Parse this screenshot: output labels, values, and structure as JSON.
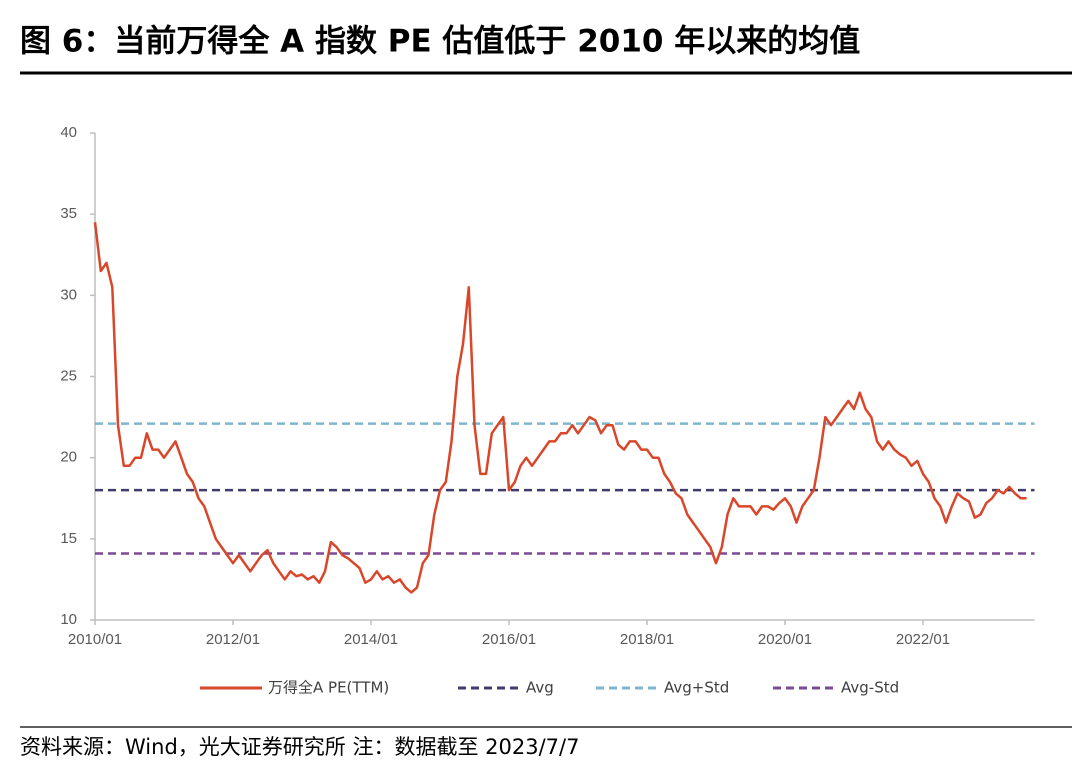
{
  "chart_data": {
    "type": "line",
    "title": "图 6：当前万得全 A 指数 PE 估值低于 2010 年以来的均值",
    "source": "资料来源：Wind，光大证券研究所 注：数据截至 2023/7/7",
    "x": [
      "2010/01",
      "2010/02",
      "2010/03",
      "2010/04",
      "2010/05",
      "2010/06",
      "2010/07",
      "2010/08",
      "2010/09",
      "2010/10",
      "2010/11",
      "2010/12",
      "2011/01",
      "2011/02",
      "2011/03",
      "2011/04",
      "2011/05",
      "2011/06",
      "2011/07",
      "2011/08",
      "2011/09",
      "2011/10",
      "2011/11",
      "2011/12",
      "2012/01",
      "2012/02",
      "2012/03",
      "2012/04",
      "2012/05",
      "2012/06",
      "2012/07",
      "2012/08",
      "2012/09",
      "2012/10",
      "2012/11",
      "2012/12",
      "2013/01",
      "2013/02",
      "2013/03",
      "2013/04",
      "2013/05",
      "2013/06",
      "2013/07",
      "2013/08",
      "2013/09",
      "2013/10",
      "2013/11",
      "2013/12",
      "2014/01",
      "2014/02",
      "2014/03",
      "2014/04",
      "2014/05",
      "2014/06",
      "2014/07",
      "2014/08",
      "2014/09",
      "2014/10",
      "2014/11",
      "2014/12",
      "2015/01",
      "2015/02",
      "2015/03",
      "2015/04",
      "2015/05",
      "2015/06",
      "2015/07",
      "2015/08",
      "2015/09",
      "2015/10",
      "2015/11",
      "2015/12",
      "2016/01",
      "2016/02",
      "2016/03",
      "2016/04",
      "2016/05",
      "2016/06",
      "2016/07",
      "2016/08",
      "2016/09",
      "2016/10",
      "2016/11",
      "2016/12",
      "2017/01",
      "2017/02",
      "2017/03",
      "2017/04",
      "2017/05",
      "2017/06",
      "2017/07",
      "2017/08",
      "2017/09",
      "2017/10",
      "2017/11",
      "2017/12",
      "2018/01",
      "2018/02",
      "2018/03",
      "2018/04",
      "2018/05",
      "2018/06",
      "2018/07",
      "2018/08",
      "2018/09",
      "2018/10",
      "2018/11",
      "2018/12",
      "2019/01",
      "2019/02",
      "2019/03",
      "2019/04",
      "2019/05",
      "2019/06",
      "2019/07",
      "2019/08",
      "2019/09",
      "2019/10",
      "2019/11",
      "2019/12",
      "2020/01",
      "2020/02",
      "2020/03",
      "2020/04",
      "2020/05",
      "2020/06",
      "2020/07",
      "2020/08",
      "2020/09",
      "2020/10",
      "2020/11",
      "2020/12",
      "2021/01",
      "2021/02",
      "2021/03",
      "2021/04",
      "2021/05",
      "2021/06",
      "2021/07",
      "2021/08",
      "2021/09",
      "2021/10",
      "2021/11",
      "2021/12",
      "2022/01",
      "2022/02",
      "2022/03",
      "2022/04",
      "2022/05",
      "2022/06",
      "2022/07",
      "2022/08",
      "2022/09",
      "2022/10",
      "2022/11",
      "2022/12",
      "2023/01",
      "2023/02",
      "2023/03",
      "2023/04",
      "2023/05",
      "2023/06",
      "2023/07"
    ],
    "series": [
      {
        "name": "万得全A PE(TTM)",
        "color": "#d9472b",
        "values": [
          34.5,
          31.5,
          32,
          30.5,
          22,
          19.5,
          19.5,
          20,
          20,
          21.5,
          20.5,
          20.5,
          20,
          20.5,
          21,
          20,
          19,
          18.5,
          17.5,
          17,
          16,
          15,
          14.5,
          14,
          13.5,
          14,
          13.5,
          13,
          13.5,
          14,
          14.3,
          13.5,
          13,
          12.5,
          13,
          12.7,
          12.8,
          12.5,
          12.7,
          12.3,
          13,
          14.8,
          14.5,
          14,
          13.8,
          13.5,
          13.2,
          12.3,
          12.5,
          13,
          12.5,
          12.7,
          12.3,
          12.5,
          12,
          11.7,
          12,
          13.5,
          14,
          16.5,
          18,
          18.5,
          21,
          25,
          27,
          30.5,
          22,
          19,
          19,
          21.5,
          22,
          22.5,
          18,
          18.5,
          19.5,
          20,
          19.5,
          20,
          20.5,
          21,
          21,
          21.5,
          21.5,
          22,
          21.5,
          22,
          22.5,
          22.3,
          21.5,
          22,
          22,
          20.8,
          20.5,
          21,
          21,
          20.5,
          20.5,
          20,
          20,
          19,
          18.5,
          17.8,
          17.5,
          16.5,
          16,
          15.5,
          15,
          14.5,
          13.5,
          14.5,
          16.5,
          17.5,
          17,
          17,
          17,
          16.5,
          17,
          17,
          16.8,
          17.2,
          17.5,
          17,
          16,
          17,
          17.5,
          18,
          20,
          22.5,
          22,
          22.5,
          23,
          23.5,
          23,
          24,
          23,
          22.5,
          21,
          20.5,
          21,
          20.5,
          20.2,
          20,
          19.5,
          19.8,
          19,
          18.5,
          17.5,
          17,
          16,
          17,
          17.8,
          17.5,
          17.3,
          16.3,
          16.5,
          17.2,
          17.5,
          18,
          17.8,
          18.2,
          17.8,
          17.5,
          17.5
        ]
      }
    ],
    "reference_lines": [
      {
        "name": "Avg",
        "value": 18,
        "color": "#3f3d6e"
      },
      {
        "name": "Avg+Std",
        "value": 22.1,
        "color": "#7fb6cf"
      },
      {
        "name": "Avg-Std",
        "value": 14.1,
        "color": "#7a4a94"
      }
    ],
    "xlim": [
      "2010/01",
      "2023/07"
    ],
    "xticks": [
      "2010/01",
      "2012/01",
      "2014/01",
      "2016/01",
      "2018/01",
      "2020/01",
      "2022/01"
    ],
    "ylim": [
      10,
      40
    ],
    "yticks": [
      10,
      15,
      20,
      25,
      30,
      35,
      40
    ]
  }
}
